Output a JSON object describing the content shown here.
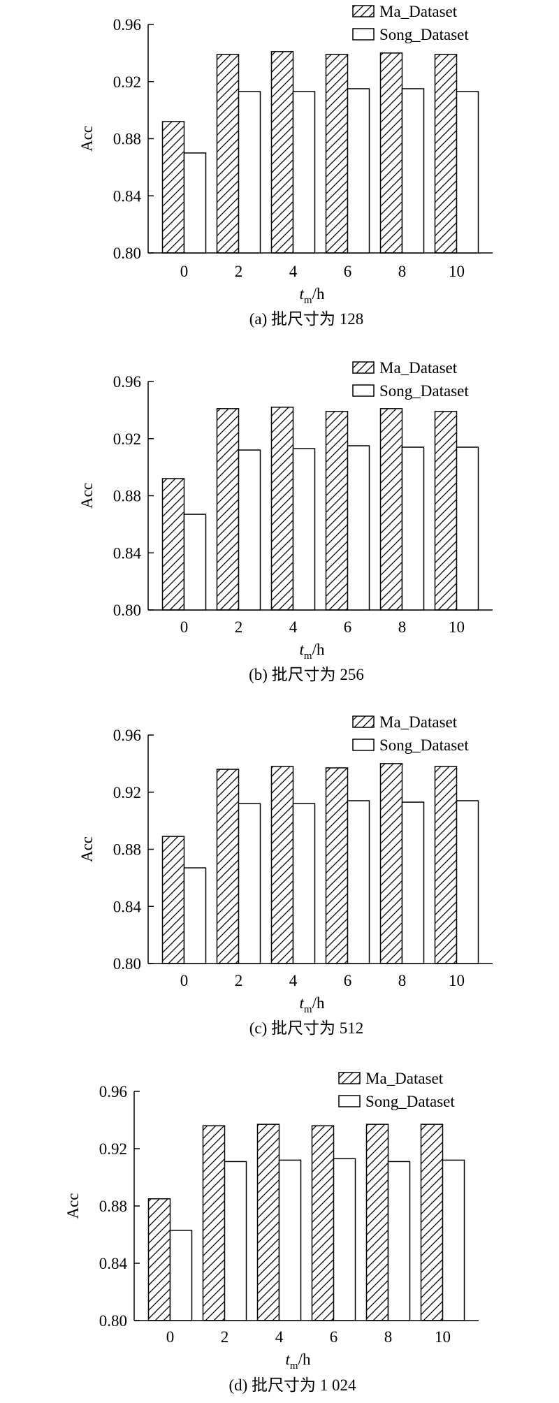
{
  "chart_data": [
    {
      "type": "bar",
      "caption": "(a) 批尺寸为 128",
      "xlabel": {
        "main": "t",
        "sub": "m",
        "unit": "/h"
      },
      "ylabel": "Acc",
      "categories": [
        "0",
        "2",
        "4",
        "6",
        "8",
        "10"
      ],
      "ylim": [
        0.8,
        0.96
      ],
      "yticks": [
        "0.80",
        "0.84",
        "0.88",
        "0.92",
        "0.96"
      ],
      "legend": "top-right",
      "series": [
        {
          "name": "Ma_Dataset",
          "pattern": "hatch",
          "values": [
            0.892,
            0.939,
            0.941,
            0.939,
            0.94,
            0.939
          ]
        },
        {
          "name": "Song_Dataset",
          "pattern": "plain",
          "values": [
            0.87,
            0.913,
            0.913,
            0.915,
            0.915,
            0.913
          ]
        }
      ]
    },
    {
      "type": "bar",
      "caption": "(b) 批尺寸为 256",
      "xlabel": {
        "main": "t",
        "sub": "m",
        "unit": "/h"
      },
      "ylabel": "Acc",
      "categories": [
        "0",
        "2",
        "4",
        "6",
        "8",
        "10"
      ],
      "ylim": [
        0.8,
        0.96
      ],
      "yticks": [
        "0.80",
        "0.84",
        "0.88",
        "0.92",
        "0.96"
      ],
      "legend": "top-right",
      "series": [
        {
          "name": "Ma_Dataset",
          "pattern": "hatch",
          "values": [
            0.892,
            0.941,
            0.942,
            0.939,
            0.941,
            0.939
          ]
        },
        {
          "name": "Song_Dataset",
          "pattern": "plain",
          "values": [
            0.867,
            0.912,
            0.913,
            0.915,
            0.914,
            0.914
          ]
        }
      ]
    },
    {
      "type": "bar",
      "caption": "(c) 批尺寸为 512",
      "xlabel": {
        "main": "t",
        "sub": "m",
        "unit": "/h"
      },
      "ylabel": "Acc",
      "categories": [
        "0",
        "2",
        "4",
        "6",
        "8",
        "10"
      ],
      "ylim": [
        0.8,
        0.96
      ],
      "yticks": [
        "0.80",
        "0.84",
        "0.88",
        "0.92",
        "0.96"
      ],
      "legend": "top-right",
      "series": [
        {
          "name": "Ma_Dataset",
          "pattern": "hatch",
          "values": [
            0.889,
            0.936,
            0.938,
            0.937,
            0.94,
            0.938
          ]
        },
        {
          "name": "Song_Dataset",
          "pattern": "plain",
          "values": [
            0.867,
            0.912,
            0.912,
            0.914,
            0.913,
            0.914
          ]
        }
      ]
    },
    {
      "type": "bar",
      "caption": "(d) 批尺寸为 1 024",
      "xlabel": {
        "main": "t",
        "sub": "m",
        "unit": "/h"
      },
      "ylabel": "Acc",
      "categories": [
        "0",
        "2",
        "4",
        "6",
        "8",
        "10"
      ],
      "ylim": [
        0.8,
        0.96
      ],
      "yticks": [
        "0.80",
        "0.84",
        "0.88",
        "0.92",
        "0.96"
      ],
      "legend": "top-right",
      "series": [
        {
          "name": "Ma_Dataset",
          "pattern": "hatch",
          "values": [
            0.885,
            0.936,
            0.937,
            0.936,
            0.937,
            0.937
          ]
        },
        {
          "name": "Song_Dataset",
          "pattern": "plain",
          "values": [
            0.863,
            0.911,
            0.912,
            0.913,
            0.911,
            0.912
          ]
        }
      ]
    }
  ]
}
